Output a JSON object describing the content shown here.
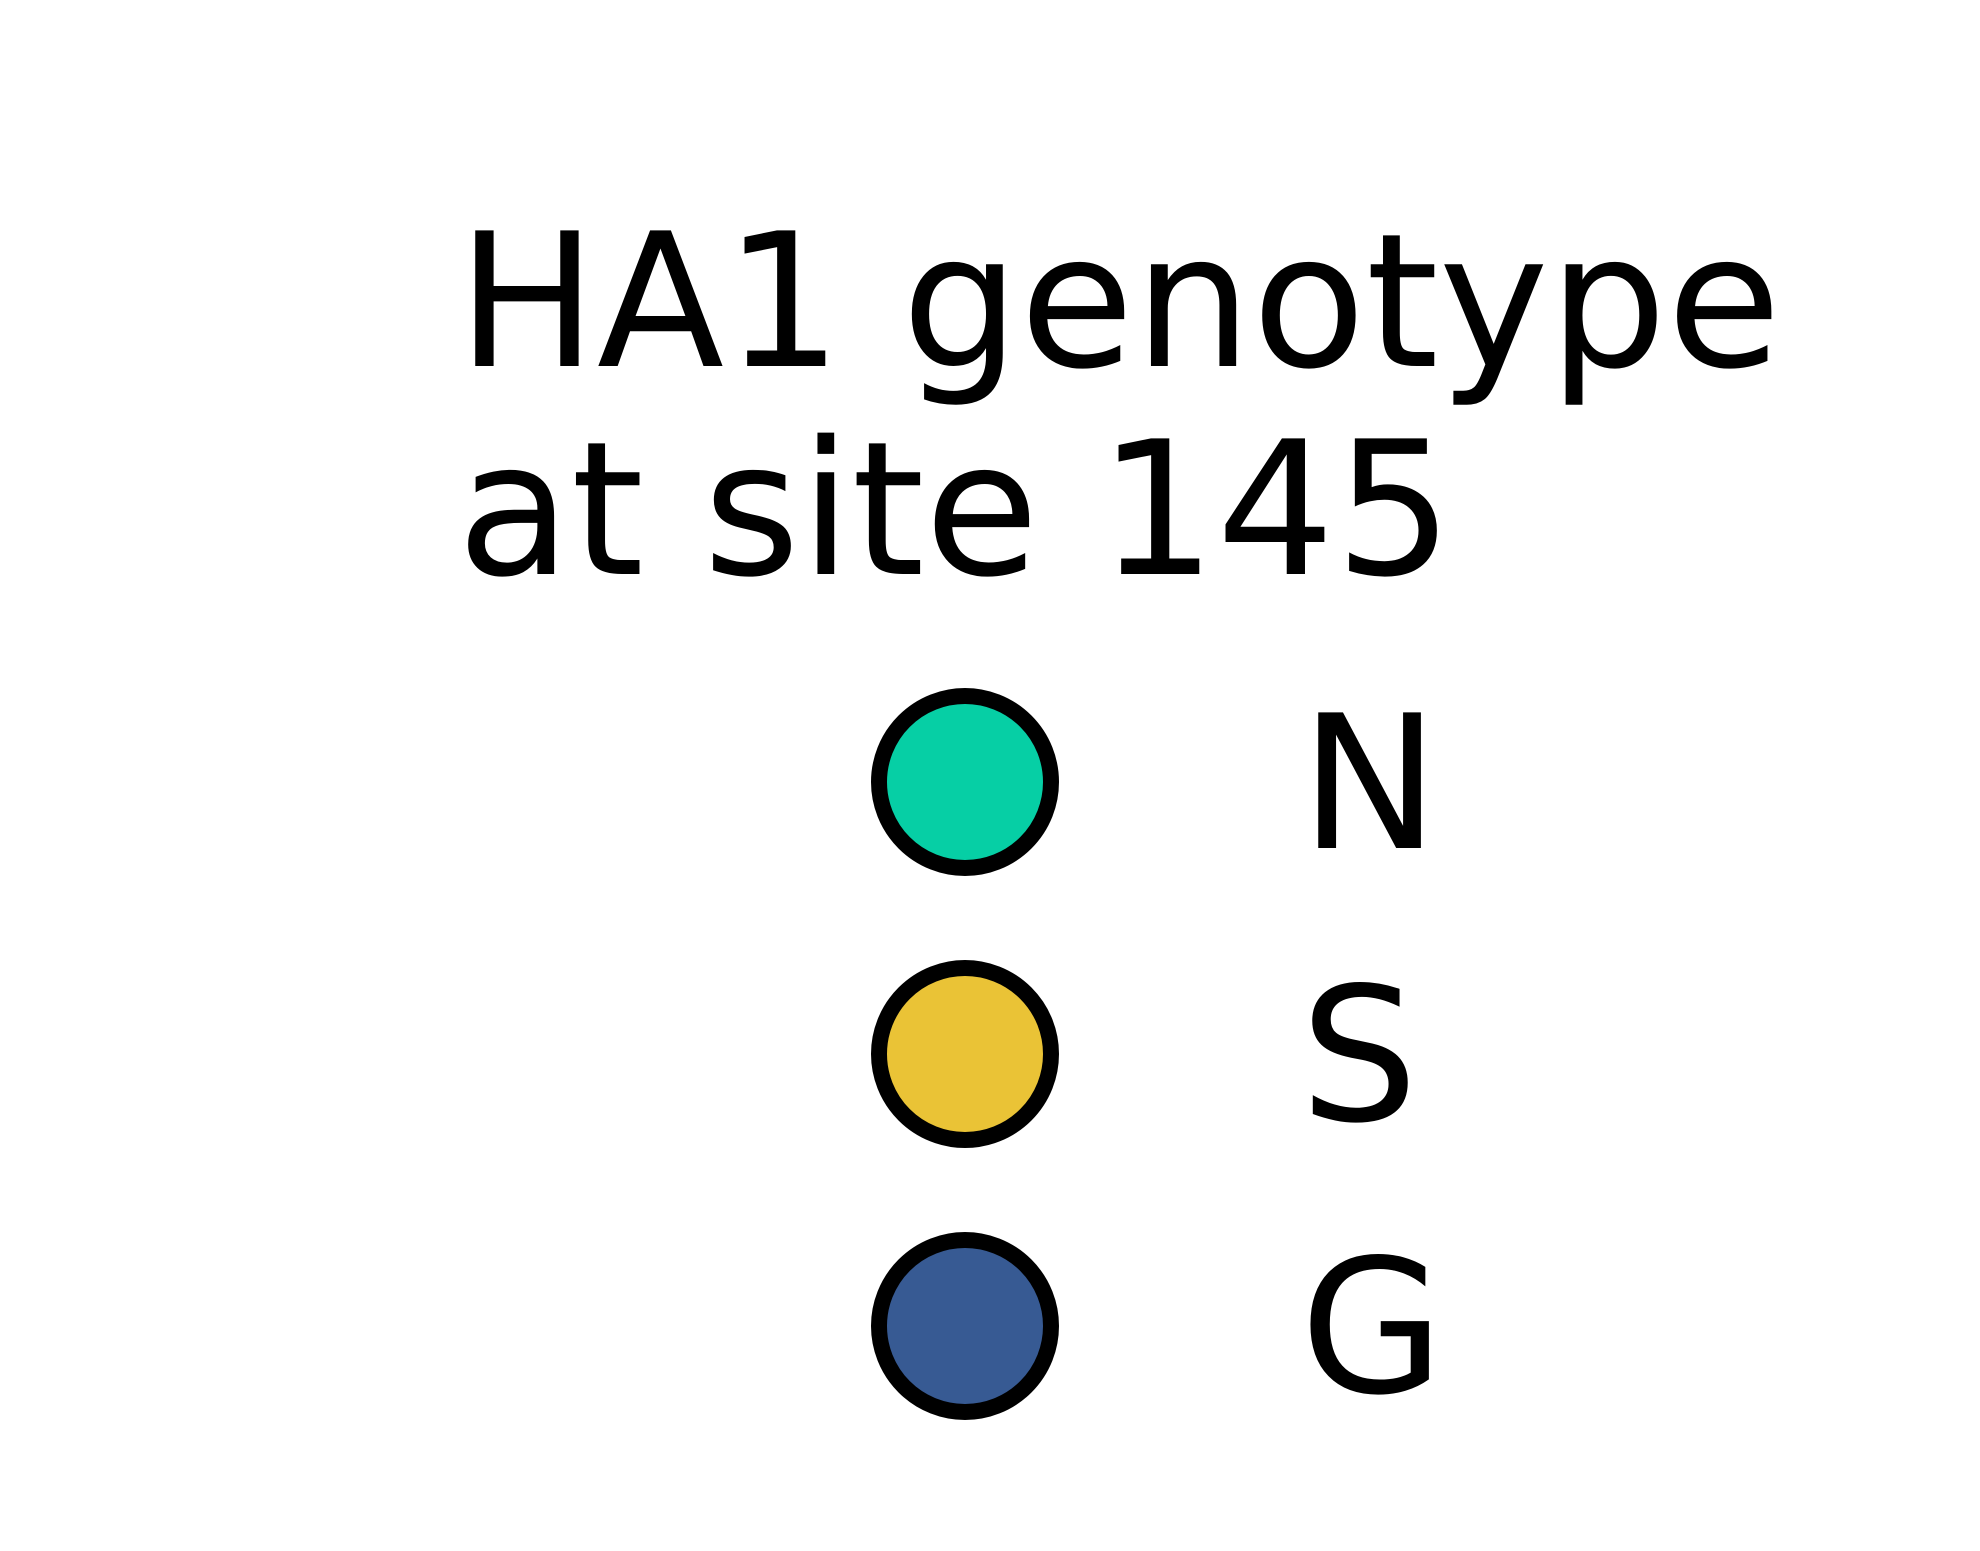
{
  "chart_data": {
    "type": "legend",
    "title_lines": [
      "HA1 genotype",
      "at site 145"
    ],
    "entries": [
      {
        "label": "N",
        "color": "#06CFA5"
      },
      {
        "label": "S",
        "color": "#EAC336"
      },
      {
        "label": "G",
        "color": "#375A93"
      }
    ],
    "marker": "circle",
    "marker_edge_color": "#000000"
  }
}
